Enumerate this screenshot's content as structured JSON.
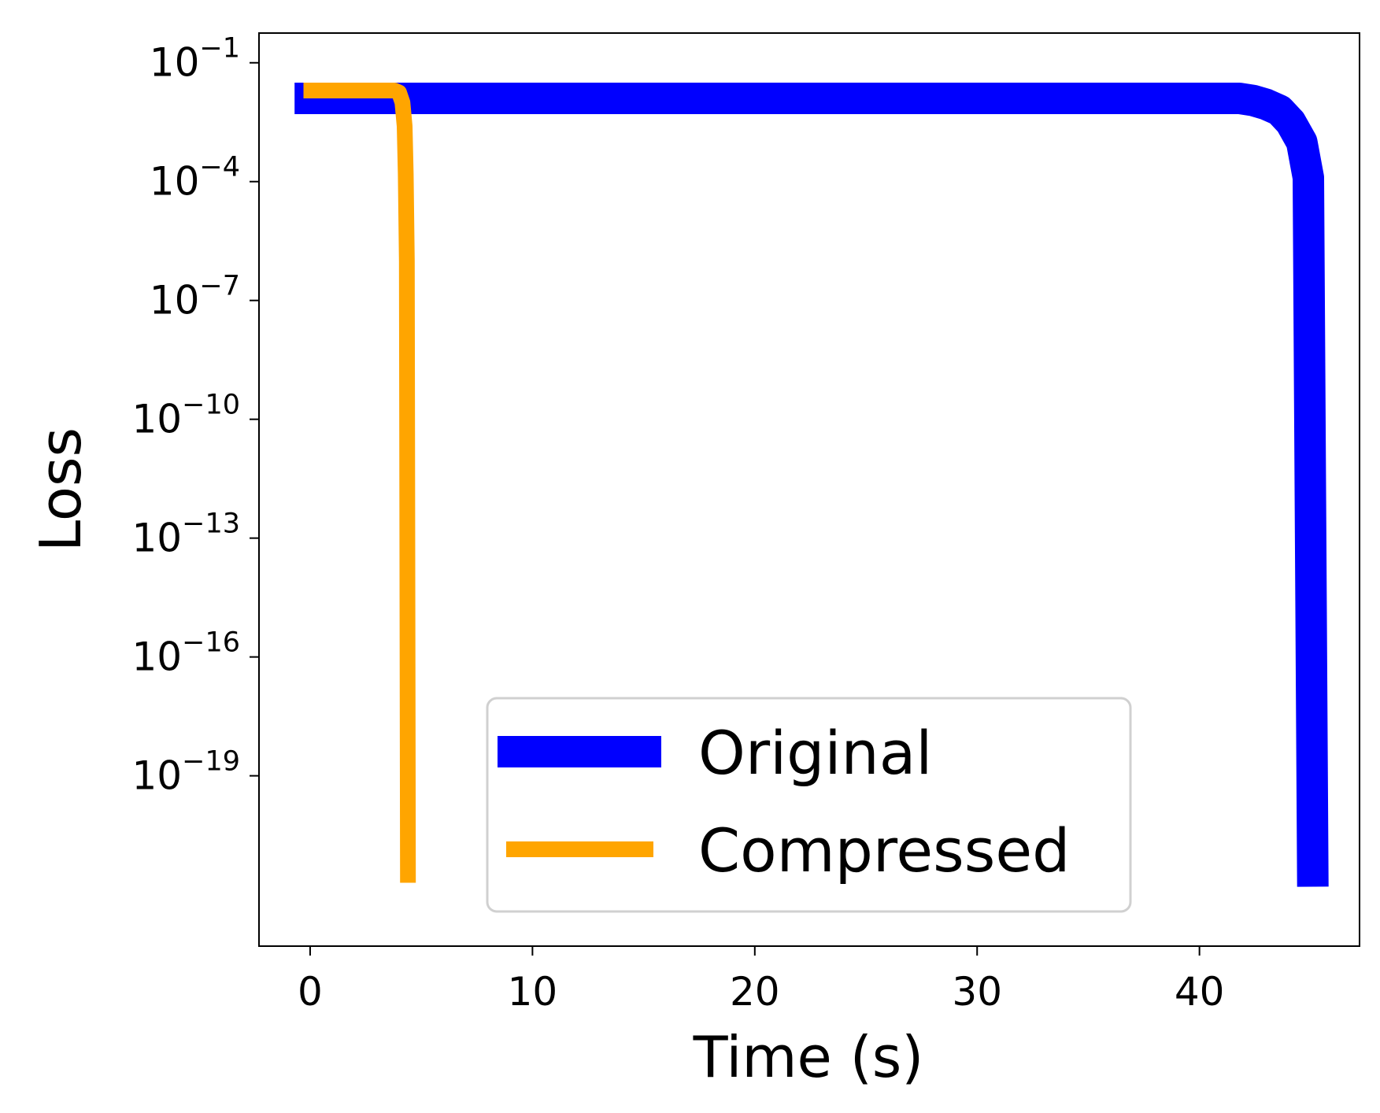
{
  "chart_data": {
    "type": "line",
    "title": "",
    "xlabel": "Time (s)",
    "ylabel": "Loss",
    "yscale": "log",
    "xlim": [
      -2.3,
      47.2
    ],
    "ylim_log10": [
      -23.3,
      -0.25
    ],
    "x_ticks": [
      {
        "value": 0,
        "label": "0"
      },
      {
        "value": 10,
        "label": "10"
      },
      {
        "value": 20,
        "label": "20"
      },
      {
        "value": 30,
        "label": "30"
      },
      {
        "value": 40,
        "label": "40"
      }
    ],
    "y_ticks": [
      {
        "exp": -1,
        "base": "10",
        "sup": "−1"
      },
      {
        "exp": -4,
        "base": "10",
        "sup": "−4"
      },
      {
        "exp": -7,
        "base": "10",
        "sup": "−7"
      },
      {
        "exp": -10,
        "base": "10",
        "sup": "−10"
      },
      {
        "exp": -13,
        "base": "10",
        "sup": "−13"
      },
      {
        "exp": -16,
        "base": "10",
        "sup": "−16"
      },
      {
        "exp": -19,
        "base": "10",
        "sup": "−19"
      }
    ],
    "grid": false,
    "legend_position": "lower-center",
    "series": [
      {
        "name": "Original",
        "color": "#0000ff",
        "line_style": "thick",
        "x": [
          -0.7,
          41.2,
          41.8,
          42.4,
          43.0,
          43.6,
          44.1,
          44.6,
          44.9,
          45.1
        ],
        "log10_y": [
          -1.9,
          -1.9,
          -1.9,
          -1.95,
          -2.05,
          -2.2,
          -2.5,
          -3.0,
          -3.9,
          -21.8
        ]
      },
      {
        "name": "Compressed",
        "color": "#ffa500",
        "line_style": "medium",
        "x": [
          -0.3,
          3.8,
          4.0,
          4.15,
          4.25,
          4.3,
          4.35,
          4.4
        ],
        "log10_y": [
          -1.7,
          -1.7,
          -1.75,
          -2.0,
          -2.6,
          -3.8,
          -6.0,
          -21.7
        ]
      }
    ]
  }
}
